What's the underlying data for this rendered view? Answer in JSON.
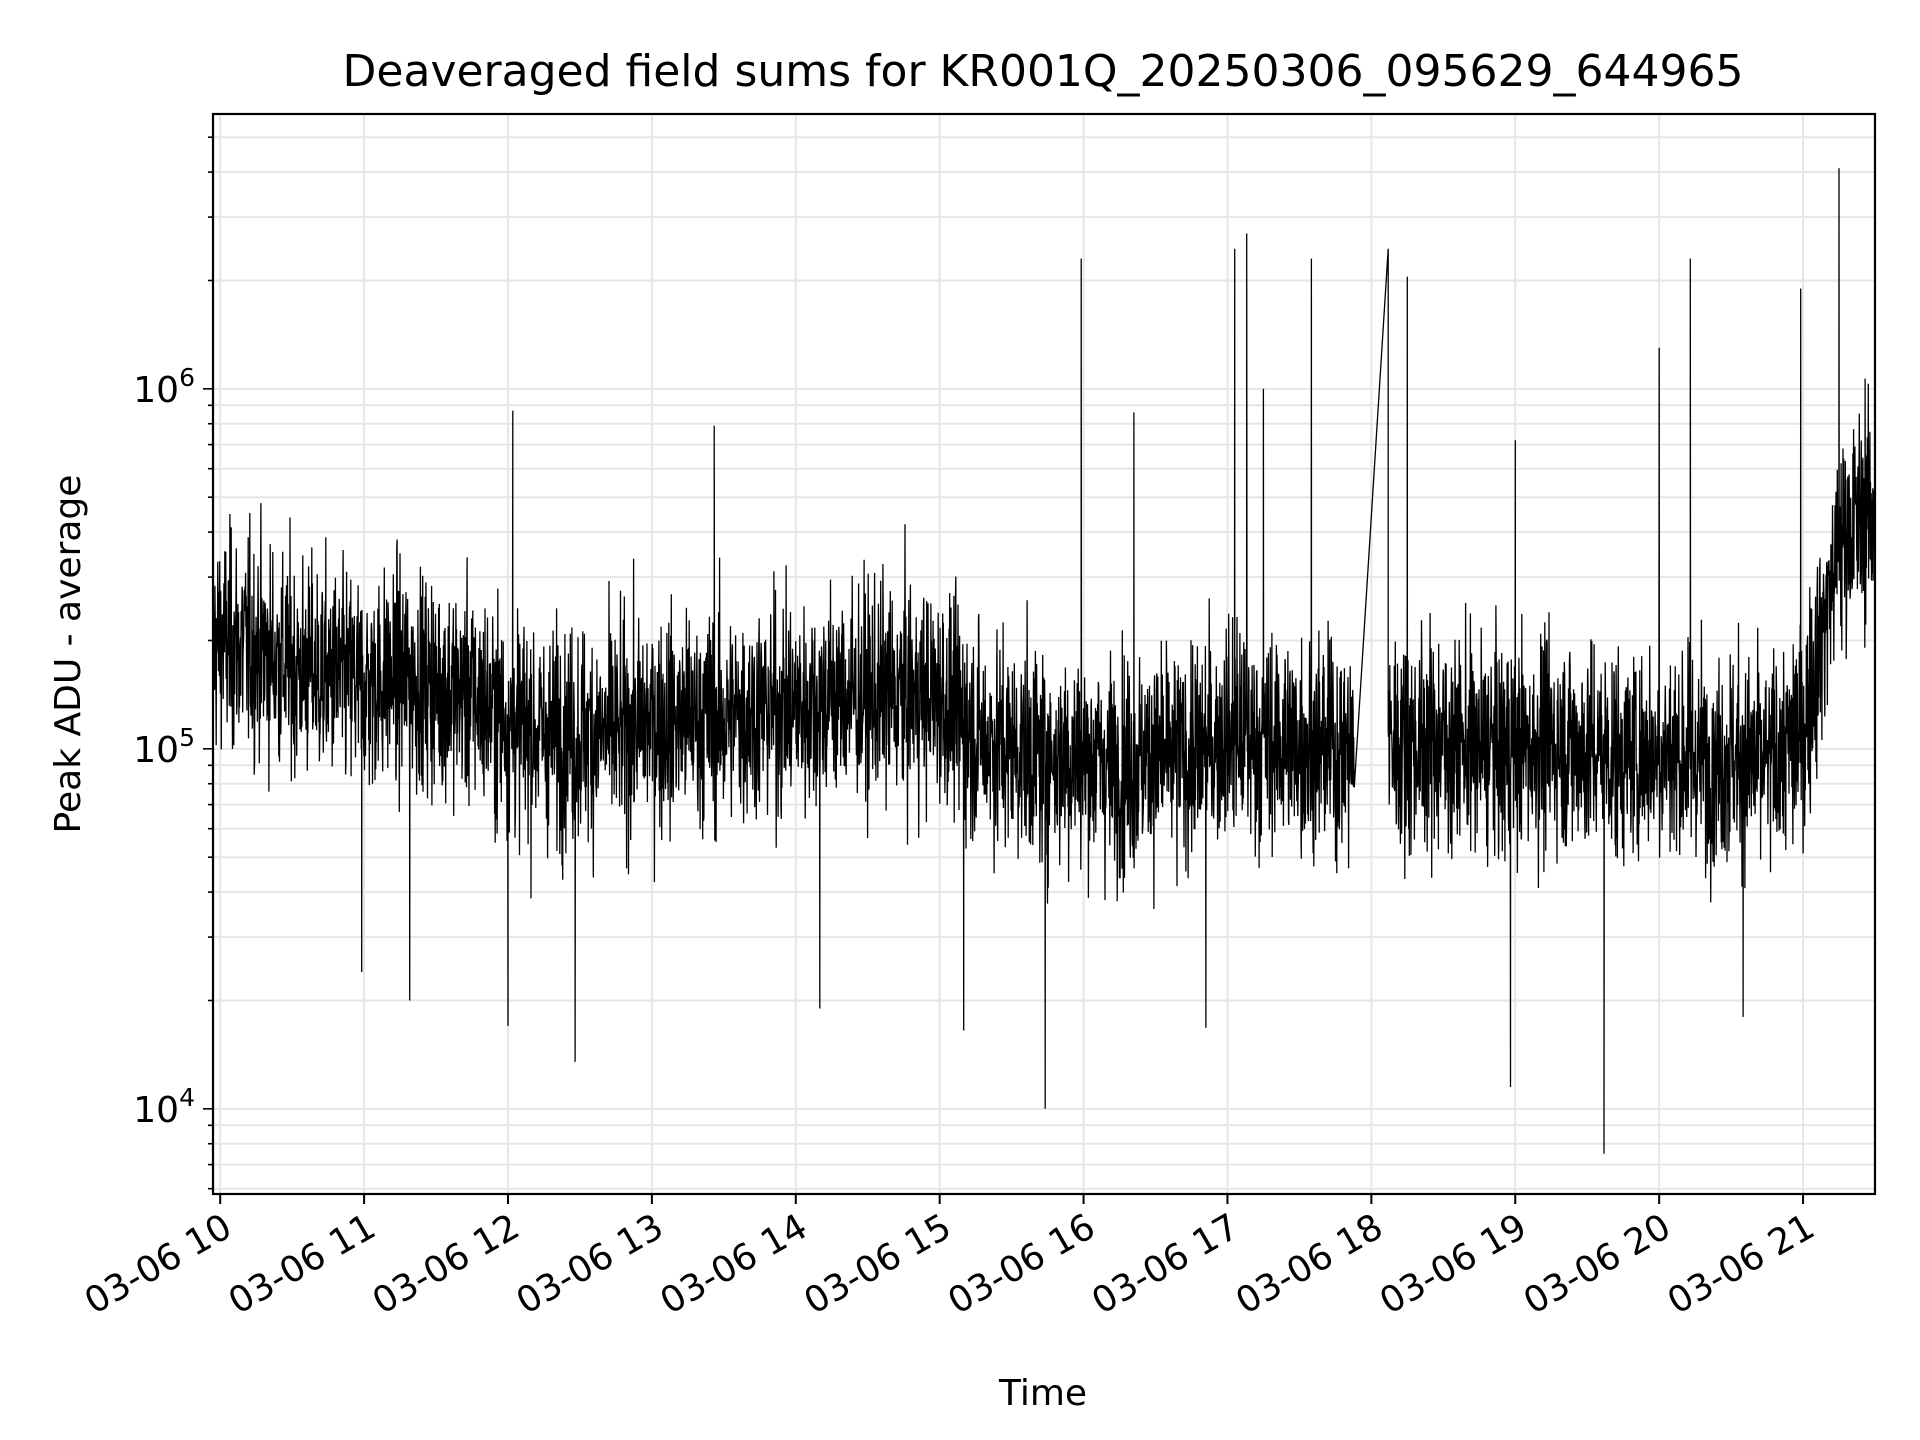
{
  "chart_data": {
    "type": "line",
    "title": "Deaveraged field sums for KR001Q_20250306_095629_644965",
    "xlabel": "Time",
    "ylabel": "Peak ADU - average",
    "xscale": "time",
    "yscale": "log",
    "xlim": [
      "2025-03-06 09:57",
      "2025-03-06 21:30"
    ],
    "ylim": [
      5800,
      5800000
    ],
    "grid": true,
    "line_color": "#000000",
    "grid_color": "#e6e6e6",
    "x_tick_labels": [
      "03-06 10",
      "03-06 11",
      "03-06 12",
      "03-06 13",
      "03-06 14",
      "03-06 15",
      "03-06 16",
      "03-06 17",
      "03-06 18",
      "03-06 19",
      "03-06 20",
      "03-06 21"
    ],
    "x_ticks": [
      "2025-03-06 10:00",
      "2025-03-06 11:00",
      "2025-03-06 12:00",
      "2025-03-06 13:00",
      "2025-03-06 14:00",
      "2025-03-06 15:00",
      "2025-03-06 16:00",
      "2025-03-06 17:00",
      "2025-03-06 18:00",
      "2025-03-06 19:00",
      "2025-03-06 20:00",
      "2025-03-06 21:00"
    ],
    "y_ticks": [
      10000,
      100000,
      1000000
    ],
    "y_tick_labels": [
      {
        "base": "10",
        "exp": "4"
      },
      {
        "base": "10",
        "exp": "5"
      },
      {
        "base": "10",
        "exp": "6"
      }
    ],
    "series": [
      {
        "time": [
          "2025-03-06 09:57",
          "2025-03-06 10:15",
          "2025-03-06 10:30",
          "2025-03-06 10:45",
          "2025-03-06 11:00",
          "2025-03-06 11:15",
          "2025-03-06 11:30",
          "2025-03-06 11:45",
          "2025-03-06 12:00",
          "2025-03-06 12:15",
          "2025-03-06 12:30",
          "2025-03-06 12:45",
          "2025-03-06 13:00",
          "2025-03-06 13:15",
          "2025-03-06 13:30",
          "2025-03-06 13:45",
          "2025-03-06 14:00",
          "2025-03-06 14:15",
          "2025-03-06 14:30",
          "2025-03-06 14:45",
          "2025-03-06 15:00",
          "2025-03-06 15:15",
          "2025-03-06 15:30",
          "2025-03-06 15:45",
          "2025-03-06 16:00",
          "2025-03-06 16:15",
          "2025-03-06 16:30",
          "2025-03-06 16:45",
          "2025-03-06 17:00",
          "2025-03-06 17:15",
          "2025-03-06 17:30",
          "2025-03-06 17:45",
          "2025-03-06 18:10",
          "2025-03-06 18:30",
          "2025-03-06 18:45",
          "2025-03-06 19:00",
          "2025-03-06 19:15",
          "2025-03-06 19:30",
          "2025-03-06 19:45",
          "2025-03-06 20:00",
          "2025-03-06 20:15",
          "2025-03-06 20:30",
          "2025-03-06 20:45",
          "2025-03-06 21:00",
          "2025-03-06 21:15",
          "2025-03-06 21:30"
        ],
        "values": [
          200000,
          190000,
          170000,
          160000,
          150000,
          160000,
          150000,
          140000,
          120000,
          110000,
          110000,
          110000,
          120000,
          120000,
          120000,
          130000,
          130000,
          140000,
          140000,
          140000,
          140000,
          110000,
          100000,
          95000,
          95000,
          90000,
          95000,
          95000,
          110000,
          105000,
          105000,
          100000,
          105000,
          105000,
          100000,
          100000,
          105000,
          100000,
          95000,
          100000,
          95000,
          95000,
          90000,
          110000,
          380000,
          480000
        ],
        "spikes": [
          {
            "time": "2025-03-06 12:02",
            "value": 870000
          },
          {
            "time": "2025-03-06 13:26",
            "value": 790000
          },
          {
            "time": "2025-03-06 15:59",
            "value": 2300000
          },
          {
            "time": "2025-03-06 16:21",
            "value": 860000
          },
          {
            "time": "2025-03-06 17:03",
            "value": 2450000
          },
          {
            "time": "2025-03-06 17:08",
            "value": 2700000
          },
          {
            "time": "2025-03-06 17:15",
            "value": 1000000
          },
          {
            "time": "2025-03-06 17:35",
            "value": 2300000
          },
          {
            "time": "2025-03-06 18:07",
            "value": 2450000
          },
          {
            "time": "2025-03-06 18:15",
            "value": 2050000
          },
          {
            "time": "2025-03-06 19:00",
            "value": 720000
          },
          {
            "time": "2025-03-06 20:00",
            "value": 1300000
          },
          {
            "time": "2025-03-06 20:13",
            "value": 2300000
          },
          {
            "time": "2025-03-06 20:59",
            "value": 1900000
          },
          {
            "time": "2025-03-06 21:15",
            "value": 4100000
          }
        ],
        "dips": [
          {
            "time": "2025-03-06 10:59",
            "value": 24000
          },
          {
            "time": "2025-03-06 11:19",
            "value": 20000
          },
          {
            "time": "2025-03-06 12:00",
            "value": 17000
          },
          {
            "time": "2025-03-06 12:28",
            "value": 13500
          },
          {
            "time": "2025-03-06 14:10",
            "value": 19000
          },
          {
            "time": "2025-03-06 15:10",
            "value": 16500
          },
          {
            "time": "2025-03-06 15:44",
            "value": 10000
          },
          {
            "time": "2025-03-06 16:51",
            "value": 16800
          },
          {
            "time": "2025-03-06 18:58",
            "value": 11500
          },
          {
            "time": "2025-03-06 19:37",
            "value": 7500
          },
          {
            "time": "2025-03-06 20:35",
            "value": 18000
          }
        ]
      }
    ]
  }
}
